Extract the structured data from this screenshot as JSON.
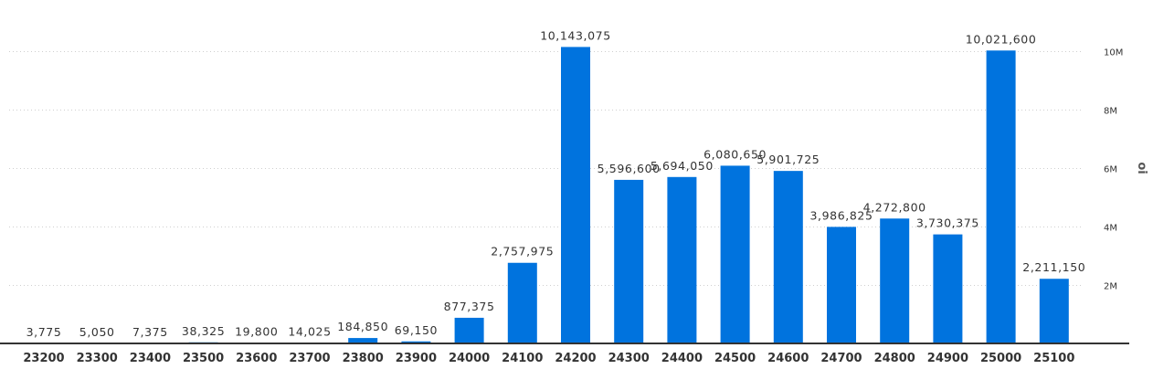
{
  "chart_data": {
    "type": "bar",
    "categories": [
      "23200",
      "23300",
      "23400",
      "23500",
      "23600",
      "23700",
      "23800",
      "23900",
      "24000",
      "24100",
      "24200",
      "24300",
      "24400",
      "24500",
      "24600",
      "24700",
      "24800",
      "24900",
      "25000",
      "25100"
    ],
    "values": [
      3775,
      5050,
      7375,
      38325,
      19800,
      14025,
      184850,
      69150,
      877375,
      2757975,
      10143075,
      5596600,
      5694050,
      6080650,
      5901725,
      3986825,
      4272800,
      3730375,
      10021600,
      2211150
    ],
    "data_labels": [
      "3,775",
      "5,050",
      "7,375",
      "38,325",
      "19,800",
      "14,025",
      "184,850",
      "69,150",
      "877,375",
      "2,757,975",
      "10,143,075",
      "5,596,600",
      "5,694,050",
      "6,080,650",
      "5,901,725",
      "3,986,825",
      "4,272,800",
      "3,730,375",
      "10,021,600",
      "2,211,150"
    ],
    "y_ticks": [
      2000000,
      4000000,
      6000000,
      8000000,
      10000000
    ],
    "y_tick_labels": [
      "2M",
      "4M",
      "6M",
      "8M",
      "10M"
    ],
    "ylabel": "oi",
    "ylim": [
      0,
      10000000
    ],
    "y_axis_side": "right",
    "grid": true,
    "bar_color": "#0073de"
  }
}
